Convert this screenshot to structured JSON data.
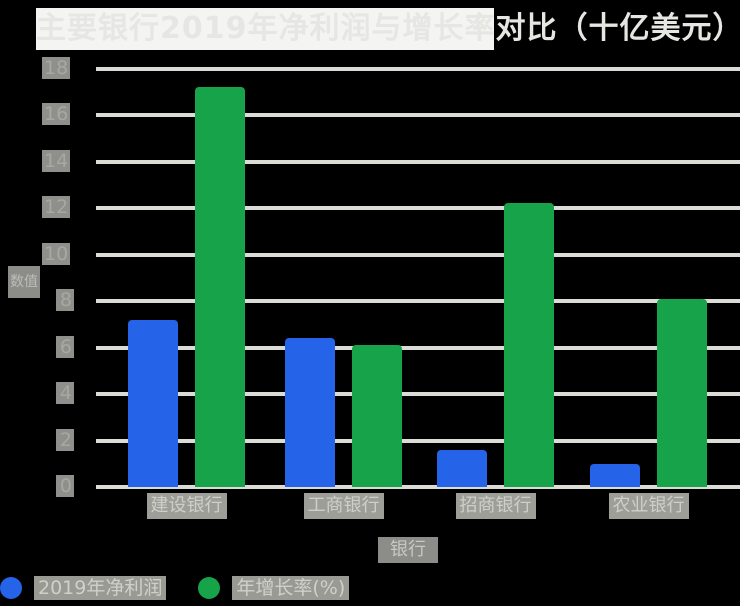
{
  "chart_data": {
    "type": "bar",
    "title": "主要银行2019年净利润与增长率对比（十亿美元）",
    "xlabel": "银行",
    "ylabel": "数值",
    "categories": [
      "建设银行",
      "工商银行",
      "招商银行",
      "农业银行"
    ],
    "series": [
      {
        "name": "2019年净利润",
        "color": "#2563e8",
        "values": [
          7.2,
          6.4,
          1.6,
          1.0
        ]
      },
      {
        "name": "年增长率(%)",
        "color": "#16a34a",
        "values": [
          17.2,
          6.1,
          12.2,
          8.1
        ]
      }
    ],
    "yticks": [
      "0",
      "2",
      "4",
      "6",
      "8",
      "10",
      "12",
      "14",
      "16",
      "18"
    ],
    "ylim": [
      0,
      18
    ],
    "grid": true,
    "legend_position": "bottom-left"
  },
  "title": "主要银行2019年净利润与增长率对比（十亿美元）",
  "axes": {
    "x_title": "银行",
    "y_title": "数值",
    "x_ticks": [
      "建设银行",
      "工商银行",
      "招商银行",
      "农业银行"
    ],
    "y_ticks": [
      "0",
      "2",
      "4",
      "6",
      "8",
      "10",
      "12",
      "14",
      "16",
      "18"
    ]
  },
  "legend": [
    {
      "label": "2019年净利润",
      "color": "#2563e8"
    },
    {
      "label": "年增长率(%)",
      "color": "#16a34a"
    }
  ]
}
